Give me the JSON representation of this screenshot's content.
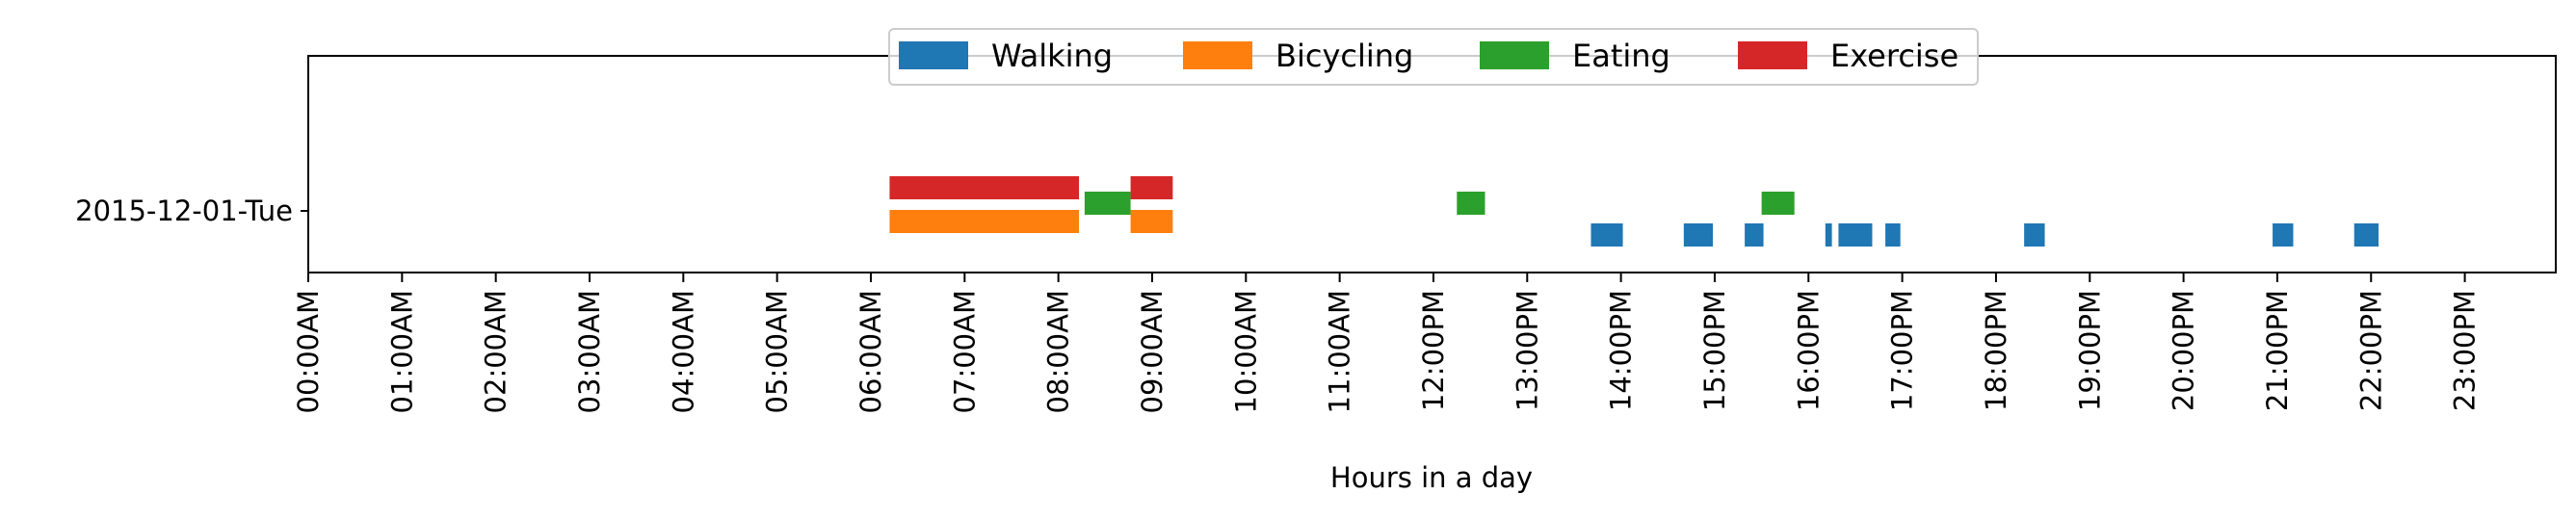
{
  "chart_data": {
    "type": "bar",
    "orientation": "horizontal-timeline",
    "xlabel": "Hours in a day",
    "xlim": [
      0,
      24
    ],
    "x_ticks": [
      {
        "value": 0,
        "label": "00:00AM"
      },
      {
        "value": 1,
        "label": "01:00AM"
      },
      {
        "value": 2,
        "label": "02:00AM"
      },
      {
        "value": 3,
        "label": "03:00AM"
      },
      {
        "value": 4,
        "label": "04:00AM"
      },
      {
        "value": 5,
        "label": "05:00AM"
      },
      {
        "value": 6,
        "label": "06:00AM"
      },
      {
        "value": 7,
        "label": "07:00AM"
      },
      {
        "value": 8,
        "label": "08:00AM"
      },
      {
        "value": 9,
        "label": "09:00AM"
      },
      {
        "value": 10,
        "label": "10:00AM"
      },
      {
        "value": 11,
        "label": "11:00AM"
      },
      {
        "value": 12,
        "label": "12:00PM"
      },
      {
        "value": 13,
        "label": "13:00PM"
      },
      {
        "value": 14,
        "label": "14:00PM"
      },
      {
        "value": 15,
        "label": "15:00PM"
      },
      {
        "value": 16,
        "label": "16:00PM"
      },
      {
        "value": 17,
        "label": "17:00PM"
      },
      {
        "value": 18,
        "label": "18:00PM"
      },
      {
        "value": 19,
        "label": "19:00PM"
      },
      {
        "value": 20,
        "label": "20:00PM"
      },
      {
        "value": 21,
        "label": "21:00PM"
      },
      {
        "value": 22,
        "label": "22:00PM"
      },
      {
        "value": 23,
        "label": "23:00PM"
      }
    ],
    "y_categories": [
      "2015-12-01-Tue"
    ],
    "grid": false,
    "legend_placement": "upper-center",
    "series": [
      {
        "name": "Walking",
        "color": "#1f77b4",
        "lane": 0,
        "intervals": [
          [
            13.68,
            14.02
          ],
          [
            14.67,
            14.98
          ],
          [
            15.32,
            15.52
          ],
          [
            16.18,
            16.25
          ],
          [
            16.32,
            16.68
          ],
          [
            16.82,
            16.98
          ],
          [
            18.3,
            18.52
          ],
          [
            20.95,
            21.17
          ],
          [
            21.82,
            22.08
          ]
        ]
      },
      {
        "name": "Bicycling",
        "color": "#ff7f0e",
        "lane": 1,
        "intervals": [
          [
            6.2,
            8.22
          ],
          [
            8.77,
            9.22
          ]
        ]
      },
      {
        "name": "Eating",
        "color": "#2ca02c",
        "lane": 2,
        "intervals": [
          [
            8.28,
            8.77
          ],
          [
            12.25,
            12.55
          ],
          [
            15.5,
            15.85
          ]
        ]
      },
      {
        "name": "Exercise",
        "color": "#d62728",
        "lane": 3,
        "intervals": [
          [
            6.2,
            8.22
          ],
          [
            8.77,
            9.22
          ]
        ]
      }
    ]
  }
}
